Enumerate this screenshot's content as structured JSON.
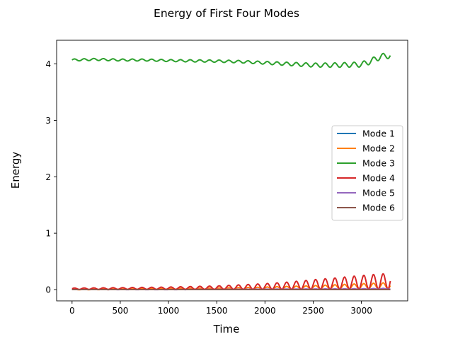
{
  "chart_data": {
    "type": "line",
    "title": "Energy of First Four Modes",
    "xlabel": "Time",
    "ylabel": "Energy",
    "xlim": [
      -160,
      3480
    ],
    "ylim": [
      -0.2,
      4.42
    ],
    "xticks": [
      0,
      500,
      1000,
      1500,
      2000,
      2500,
      3000
    ],
    "yticks": [
      0,
      1,
      2,
      3,
      4
    ],
    "grid": false,
    "legend_position": "center-right",
    "series": [
      {
        "name": "Mode 1",
        "color": "#1f77b4",
        "x": [
          0,
          500,
          1000,
          1500,
          2000,
          2500,
          3000,
          3300
        ],
        "y": [
          0.0,
          0.0,
          0.0,
          0.0,
          0.0,
          0.0,
          0.0,
          0.0
        ],
        "oscillation_amplitude": [
          0,
          0,
          0,
          0,
          0,
          0,
          0,
          0
        ],
        "oscillation_period": 100
      },
      {
        "name": "Mode 2",
        "color": "#ff7f0e",
        "x": [
          0,
          500,
          1000,
          1500,
          2000,
          2500,
          3000,
          3300
        ],
        "y": [
          0.0,
          0.005,
          0.01,
          0.015,
          0.025,
          0.04,
          0.06,
          0.07
        ],
        "oscillation_amplitude": [
          0.003,
          0.005,
          0.008,
          0.012,
          0.02,
          0.03,
          0.045,
          0.055
        ],
        "oscillation_period": 100
      },
      {
        "name": "Mode 3",
        "color": "#2ca02c",
        "x": [
          0,
          250,
          500,
          750,
          1000,
          1250,
          1500,
          1750,
          2000,
          2250,
          2500,
          2750,
          3000,
          3100,
          3200,
          3300
        ],
        "y": [
          4.07,
          4.08,
          4.07,
          4.07,
          4.06,
          4.055,
          4.05,
          4.04,
          4.02,
          4.0,
          3.98,
          3.98,
          3.99,
          4.05,
          4.13,
          4.15
        ],
        "oscillation_amplitude": [
          0.018,
          0.018,
          0.018,
          0.018,
          0.018,
          0.02,
          0.02,
          0.022,
          0.025,
          0.03,
          0.035,
          0.04,
          0.045,
          0.05,
          0.05,
          0.05
        ],
        "oscillation_period": 100
      },
      {
        "name": "Mode 4",
        "color": "#d62728",
        "x": [
          0,
          500,
          1000,
          1500,
          2000,
          2250,
          2500,
          2750,
          3000,
          3300
        ],
        "y": [
          0.015,
          0.02,
          0.025,
          0.035,
          0.055,
          0.07,
          0.09,
          0.11,
          0.13,
          0.15
        ],
        "oscillation_amplitude": [
          0.012,
          0.015,
          0.02,
          0.03,
          0.05,
          0.065,
          0.085,
          0.1,
          0.12,
          0.14
        ],
        "oscillation_period": 100
      },
      {
        "name": "Mode 5",
        "color": "#9467bd",
        "x": [
          0,
          1000,
          2000,
          3000,
          3300
        ],
        "y": [
          0.0,
          0.0,
          0.005,
          0.01,
          0.015
        ],
        "oscillation_amplitude": [
          0,
          0.001,
          0.003,
          0.006,
          0.008
        ],
        "oscillation_period": 100
      },
      {
        "name": "Mode 6",
        "color": "#8c564b",
        "x": [
          0,
          1000,
          2000,
          3000,
          3300
        ],
        "y": [
          0.0,
          0.0,
          0.0,
          0.0,
          0.0
        ],
        "oscillation_amplitude": [
          0,
          0,
          0,
          0,
          0
        ],
        "oscillation_period": 100
      }
    ]
  }
}
